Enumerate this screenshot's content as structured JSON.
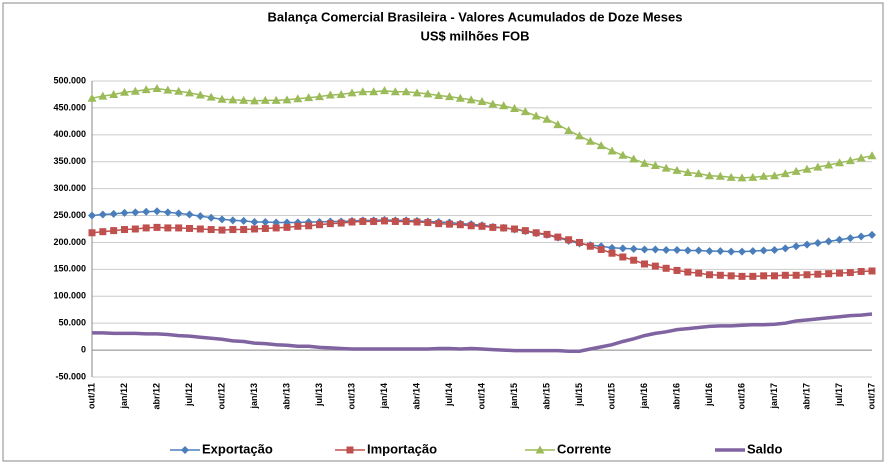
{
  "chart_data": {
    "type": "line",
    "title": "Balança Comercial Brasileira -  Valores Acumulados de Doze Meses",
    "subtitle": "US$ milhões FOB",
    "categories": [
      "out/11",
      null,
      null,
      "jan/12",
      null,
      null,
      "abr/12",
      null,
      null,
      "jul/12",
      null,
      null,
      "out/12",
      null,
      null,
      "jan/13",
      null,
      null,
      "abr/13",
      null,
      null,
      "jul/13",
      null,
      null,
      "out/13",
      null,
      null,
      "jan/14",
      null,
      null,
      "abr/14",
      null,
      null,
      "jul/14",
      null,
      null,
      "out/14",
      null,
      null,
      "jan/15",
      null,
      null,
      "abr/15",
      null,
      null,
      "jul/15",
      null,
      null,
      "out/15",
      null,
      null,
      "jan/16",
      null,
      null,
      "abr/16",
      null,
      null,
      "jul/16",
      null,
      null,
      "out/16",
      null,
      null,
      "jan/17",
      null,
      null,
      "abr/17",
      null,
      null,
      "jul/17",
      null,
      null,
      "out/17"
    ],
    "series": [
      {
        "name": "Exportação",
        "color": "#4a7ebb",
        "marker": "diamond",
        "values": [
          250000,
          252000,
          253000,
          255000,
          256000,
          257000,
          258000,
          256000,
          254000,
          252000,
          249000,
          246000,
          243000,
          241000,
          240000,
          238000,
          238000,
          237000,
          237000,
          237000,
          238000,
          238000,
          239000,
          239000,
          240000,
          241000,
          241000,
          242000,
          241000,
          241000,
          240000,
          239000,
          238000,
          237000,
          235000,
          234000,
          232000,
          229000,
          227000,
          224000,
          221000,
          217000,
          214000,
          209000,
          203000,
          198000,
          195000,
          193000,
          190000,
          189000,
          188000,
          187000,
          187000,
          186000,
          186000,
          185000,
          185000,
          184000,
          184000,
          183000,
          183000,
          184000,
          185000,
          186000,
          189000,
          193000,
          196000,
          199000,
          202000,
          205000,
          208000,
          211000,
          214000
        ]
      },
      {
        "name": "Importação",
        "color": "#c0504d",
        "marker": "square",
        "values": [
          218000,
          220000,
          222000,
          224000,
          225000,
          227000,
          228000,
          227000,
          227000,
          226000,
          225000,
          224000,
          223000,
          224000,
          224000,
          225000,
          226000,
          227000,
          228000,
          230000,
          231000,
          233000,
          235000,
          236000,
          238000,
          239000,
          239000,
          240000,
          239000,
          239000,
          238000,
          237000,
          235000,
          234000,
          233000,
          231000,
          230000,
          228000,
          227000,
          225000,
          222000,
          218000,
          215000,
          210000,
          205000,
          200000,
          193000,
          187000,
          180000,
          173000,
          167000,
          160000,
          156000,
          152000,
          148000,
          145000,
          143000,
          140000,
          139000,
          138000,
          137000,
          137000,
          138000,
          138000,
          139000,
          139000,
          140000,
          141000,
          142000,
          143000,
          144000,
          146000,
          147000
        ]
      },
      {
        "name": "Corrente",
        "color": "#9bbb59",
        "marker": "triangle",
        "values": [
          468000,
          472000,
          475000,
          479000,
          481000,
          484000,
          486000,
          483000,
          481000,
          478000,
          474000,
          470000,
          466000,
          465000,
          464000,
          463000,
          464000,
          464000,
          465000,
          467000,
          469000,
          471000,
          474000,
          475000,
          478000,
          480000,
          480000,
          482000,
          480000,
          480000,
          478000,
          476000,
          473000,
          471000,
          468000,
          465000,
          462000,
          457000,
          454000,
          449000,
          443000,
          435000,
          429000,
          419000,
          408000,
          398000,
          388000,
          380000,
          370000,
          362000,
          355000,
          347000,
          343000,
          338000,
          334000,
          330000,
          328000,
          324000,
          323000,
          321000,
          320000,
          321000,
          323000,
          324000,
          328000,
          332000,
          336000,
          340000,
          344000,
          348000,
          352000,
          357000,
          361000
        ]
      },
      {
        "name": "Saldo",
        "color": "#8064a2",
        "values": [
          32000,
          32000,
          31000,
          31000,
          31000,
          30000,
          30000,
          29000,
          27000,
          26000,
          24000,
          22000,
          20000,
          17000,
          16000,
          13000,
          12000,
          10000,
          9000,
          7000,
          7000,
          5000,
          4000,
          3000,
          2000,
          2000,
          2000,
          2000,
          2000,
          2000,
          2000,
          2000,
          3000,
          3000,
          2000,
          3000,
          2000,
          1000,
          0,
          -1000,
          -1000,
          -1000,
          -1000,
          -1000,
          -2000,
          -2000,
          2000,
          6000,
          10000,
          16000,
          21000,
          27000,
          31000,
          34000,
          38000,
          40000,
          42000,
          44000,
          45000,
          45000,
          46000,
          47000,
          47000,
          48000,
          50000,
          54000,
          56000,
          58000,
          60000,
          62000,
          64000,
          65000,
          67000
        ]
      }
    ],
    "ylim": [
      -50000,
      500000
    ],
    "yticks": [
      {
        "value": -50000,
        "label": "-50.000"
      },
      0,
      {
        "value": 50000,
        "label": "50.000"
      },
      {
        "value": 100000,
        "label": "100.000"
      },
      {
        "value": 150000,
        "label": "150.000"
      },
      {
        "value": 200000,
        "label": "200.000"
      },
      {
        "value": 250000,
        "label": "250.000"
      },
      {
        "value": 300000,
        "label": "300.000"
      },
      {
        "value": 350000,
        "label": "350.000"
      },
      {
        "value": 400000,
        "label": "400.000"
      },
      {
        "value": 450000,
        "label": "450.000"
      },
      {
        "value": 500000,
        "label": "500.000"
      }
    ],
    "grid": true,
    "legend": "bottom"
  }
}
